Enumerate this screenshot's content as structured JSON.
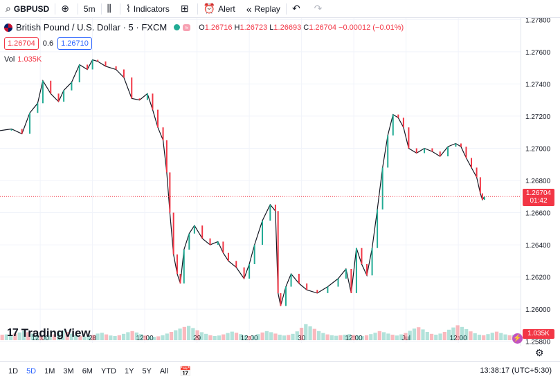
{
  "toolbar": {
    "symbol": "GBPUSD",
    "interval": "5m",
    "indicators_label": "Indicators",
    "alert_label": "Alert",
    "replay_label": "Replay"
  },
  "legend": {
    "title": "British Pound / U.S. Dollar · 5 · FXCM",
    "o_label": "O",
    "o_value": "1.26716",
    "h_label": "H",
    "h_value": "1.26723",
    "l_label": "L",
    "l_value": "1.26693",
    "c_label": "C",
    "c_value": "1.26704",
    "change": "−0.00012 (−0.01%)",
    "bid": "1.26704",
    "spread": "0.6",
    "ask": "1.26710",
    "vol_label": "Vol",
    "vol_value": "1.035K"
  },
  "price_badge": {
    "price": "1.26704",
    "countdown": "01:42"
  },
  "volume_badge": "1.035K",
  "logo_text": "TradingView",
  "bottom": {
    "ranges": [
      "1D",
      "5D",
      "1M",
      "3M",
      "6M",
      "YTD",
      "1Y",
      "5Y",
      "All"
    ],
    "active_range": "5D",
    "clock": "13:38:17 (UTC+5:30)"
  },
  "colors": {
    "up": "#22ab94",
    "down": "#f23645",
    "accent": "#2962ff"
  },
  "chart_data": {
    "type": "line",
    "title": "British Pound / U.S. Dollar · 5 · FXCM",
    "y_ticks": [
      "1.27800",
      "1.27600",
      "1.27400",
      "1.27200",
      "1.27000",
      "1.26800",
      "1.26600",
      "1.26400",
      "1.26200",
      "1.26000",
      "1.25800"
    ],
    "ylim": [
      1.2579,
      1.2781
    ],
    "x_ticks": [
      "12:00",
      "28",
      "12:00",
      "29",
      "12:00",
      "30",
      "12:00",
      "Jul",
      "12:00"
    ],
    "x_tick_pos": [
      0.0,
      1.0,
      2.0,
      3.0,
      4.0,
      5.0,
      6.0,
      7.0,
      8.0
    ],
    "xlim": [
      -0.77,
      9.19
    ],
    "series": [
      {
        "values": [
          [
            -0.77,
            1.2711
          ],
          [
            -0.55,
            1.2712
          ],
          [
            -0.35,
            1.2709
          ],
          [
            -0.2,
            1.2722
          ],
          [
            -0.05,
            1.2728
          ],
          [
            0.05,
            1.2742
          ],
          [
            0.2,
            1.2734
          ],
          [
            0.35,
            1.2729
          ],
          [
            0.45,
            1.2736
          ],
          [
            0.6,
            1.2741
          ],
          [
            0.75,
            1.2752
          ],
          [
            0.9,
            1.2749
          ],
          [
            1.0,
            1.2755
          ],
          [
            1.1,
            1.2754
          ],
          [
            1.25,
            1.2751
          ],
          [
            1.45,
            1.2749
          ],
          [
            1.6,
            1.2744
          ],
          [
            1.75,
            1.2731
          ],
          [
            1.9,
            1.273
          ],
          [
            2.05,
            1.2734
          ],
          [
            2.15,
            1.2724
          ],
          [
            2.25,
            1.2713
          ],
          [
            2.35,
            1.2705
          ],
          [
            2.42,
            1.2685
          ],
          [
            2.48,
            1.266
          ],
          [
            2.55,
            1.2634
          ],
          [
            2.62,
            1.2622
          ],
          [
            2.68,
            1.2616
          ],
          [
            2.75,
            1.2637
          ],
          [
            2.85,
            1.2647
          ],
          [
            2.95,
            1.2652
          ],
          [
            3.1,
            1.2644
          ],
          [
            3.25,
            1.264
          ],
          [
            3.4,
            1.2642
          ],
          [
            3.5,
            1.2635
          ],
          [
            3.6,
            1.263
          ],
          [
            3.75,
            1.2626
          ],
          [
            3.9,
            1.2619
          ],
          [
            4.0,
            1.2628
          ],
          [
            4.1,
            1.264
          ],
          [
            4.25,
            1.2655
          ],
          [
            4.4,
            1.2665
          ],
          [
            4.5,
            1.2661
          ],
          [
            4.55,
            1.261
          ],
          [
            4.6,
            1.2602
          ],
          [
            4.7,
            1.2614
          ],
          [
            4.8,
            1.2622
          ],
          [
            4.95,
            1.2616
          ],
          [
            5.1,
            1.2612
          ],
          [
            5.3,
            1.261
          ],
          [
            5.5,
            1.2614
          ],
          [
            5.7,
            1.2619
          ],
          [
            5.85,
            1.2625
          ],
          [
            5.95,
            1.261
          ],
          [
            6.05,
            1.2638
          ],
          [
            6.15,
            1.2628
          ],
          [
            6.25,
            1.2621
          ],
          [
            6.35,
            1.2638
          ],
          [
            6.45,
            1.2662
          ],
          [
            6.55,
            1.2688
          ],
          [
            6.65,
            1.2708
          ],
          [
            6.75,
            1.2721
          ],
          [
            6.85,
            1.2719
          ],
          [
            6.95,
            1.2713
          ],
          [
            7.05,
            1.27
          ],
          [
            7.2,
            1.2697
          ],
          [
            7.35,
            1.27
          ],
          [
            7.5,
            1.2698
          ],
          [
            7.65,
            1.2695
          ],
          [
            7.8,
            1.2701
          ],
          [
            7.95,
            1.2703
          ],
          [
            8.05,
            1.2701
          ],
          [
            8.15,
            1.2694
          ],
          [
            8.25,
            1.2688
          ],
          [
            8.35,
            1.2682
          ],
          [
            8.42,
            1.2672
          ],
          [
            8.46,
            1.2668
          ],
          [
            8.5,
            1.267
          ]
        ]
      }
    ],
    "volume": [
      0.2,
      0.21,
      0.19,
      0.24,
      0.28,
      0.34,
      0.29,
      0.24,
      0.2,
      0.16,
      0.14,
      0.17,
      0.21,
      0.27,
      0.34,
      0.3,
      0.24,
      0.19,
      0.15,
      0.13,
      0.15,
      0.19,
      0.24,
      0.27,
      0.21,
      0.17,
      0.15,
      0.18,
      0.23,
      0.29,
      0.33,
      0.28,
      0.22,
      0.17,
      0.14,
      0.12,
      0.14,
      0.18,
      0.24,
      0.3,
      0.36,
      0.42,
      0.48,
      0.52,
      0.44,
      0.36,
      0.29,
      0.23,
      0.18,
      0.15,
      0.17,
      0.21,
      0.26,
      0.31,
      0.27,
      0.22,
      0.18,
      0.15,
      0.17,
      0.22,
      0.28,
      0.33,
      0.29,
      0.24,
      0.2,
      0.17,
      0.19,
      0.23,
      0.32,
      0.45,
      0.58,
      0.5,
      0.41,
      0.33,
      0.26,
      0.21,
      0.18,
      0.16,
      0.18,
      0.2,
      0.22,
      0.19,
      0.17,
      0.15,
      0.18,
      0.22,
      0.27,
      0.33,
      0.29,
      0.24,
      0.2,
      0.17,
      0.21,
      0.26,
      0.34,
      0.42,
      0.47,
      0.39,
      0.3,
      0.23,
      0.2,
      0.24,
      0.3,
      0.38,
      0.46,
      0.54,
      0.48,
      0.4,
      0.32,
      0.25,
      0.2,
      0.18,
      0.22,
      0.27,
      0.31,
      0.26,
      0.21,
      0.18,
      0.2,
      0.24
    ]
  }
}
